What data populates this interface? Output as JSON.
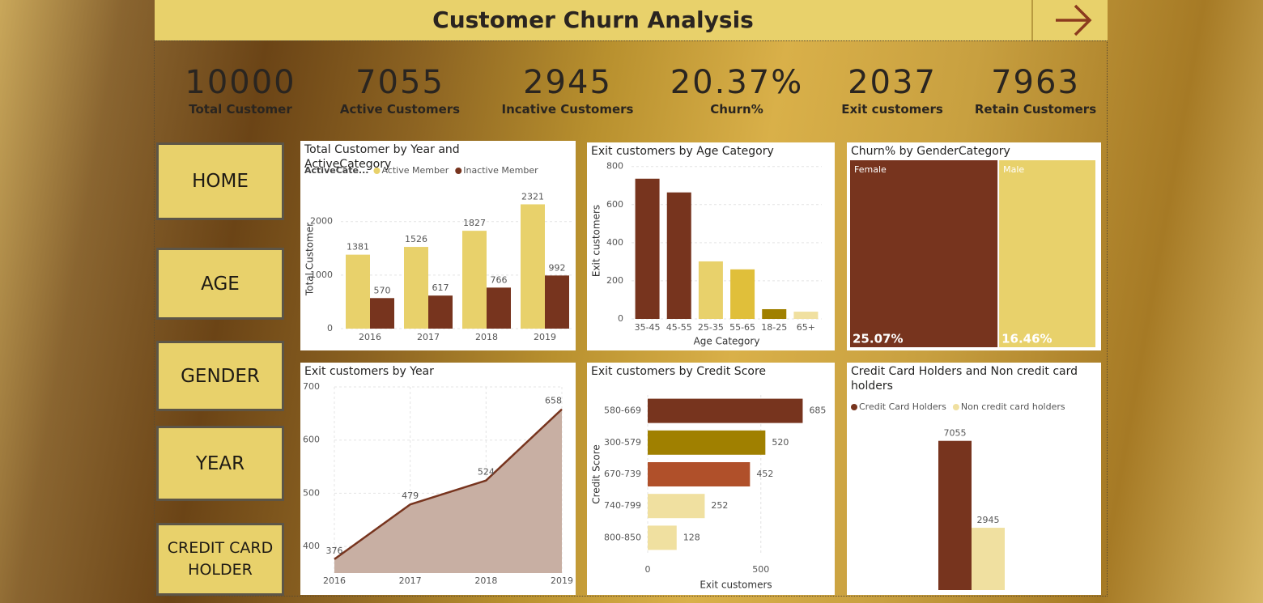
{
  "header": {
    "title": "Customer Churn Analysis"
  },
  "kpis": [
    {
      "value": "10000",
      "label": "Total Customer"
    },
    {
      "value": "7055",
      "label": "Active Customers"
    },
    {
      "value": "2945",
      "label": "Incative Customers"
    },
    {
      "value": "20.37%",
      "label": "Churn%"
    },
    {
      "value": "2037",
      "label": "Exit customers"
    },
    {
      "value": "7963",
      "label": "Retain Customers"
    }
  ],
  "nav": [
    "HOME",
    "AGE",
    "GENDER",
    "YEAR",
    "CREDIT CARD HOLDER"
  ],
  "chart_data": [
    {
      "type": "bar",
      "title": "Total Customer by Year and ActiveCategory",
      "legend_title": "ActiveCate...",
      "categories": [
        "2016",
        "2017",
        "2018",
        "2019"
      ],
      "series": [
        {
          "name": "Active Member",
          "color": "#e8d16b",
          "values": [
            1381,
            1526,
            1827,
            2321
          ]
        },
        {
          "name": "Inactive Member",
          "color": "#77341e",
          "values": [
            570,
            617,
            766,
            992
          ]
        }
      ],
      "y_label": "Total Customer",
      "ylim": [
        0,
        2600
      ],
      "yticks": [
        0,
        1000,
        2000
      ],
      "grid": true,
      "data_labels": true
    },
    {
      "type": "bar",
      "title": "Exit customers by Age Category",
      "categories": [
        "35-45",
        "45-55",
        "25-35",
        "55-65",
        "18-25",
        "65+"
      ],
      "values": [
        736,
        664,
        302,
        260,
        51,
        38
      ],
      "colors": [
        "#77341e",
        "#77341e",
        "#e8d16b",
        "#e0bf3a",
        "#a08000",
        "#f0e0a0"
      ],
      "x_label": "Age Category",
      "y_label": "Exit customers",
      "ylim": [
        0,
        820
      ],
      "yticks": [
        0,
        200,
        400,
        600,
        800
      ],
      "grid": true,
      "data_labels": false
    },
    {
      "type": "treemap",
      "title": "Churn% by GenderCategory",
      "categories": [
        "Female",
        "Male"
      ],
      "values": [
        25.07,
        16.46
      ],
      "value_labels": [
        "25.07%",
        "16.46%"
      ],
      "colors": [
        "#77341e",
        "#e8d16b"
      ]
    },
    {
      "type": "area",
      "title": "Exit customers by Year",
      "categories": [
        "2016",
        "2017",
        "2018",
        "2019"
      ],
      "values": [
        376,
        479,
        524,
        658
      ],
      "color": "#77341e",
      "fill": "#c8afa3",
      "ylim": [
        350,
        700
      ],
      "yticks": [
        400,
        500,
        600,
        700
      ],
      "grid": true,
      "data_labels": true
    },
    {
      "type": "bar",
      "orientation": "horizontal",
      "title": "Exit customers by Credit Score",
      "categories": [
        "580-669",
        "300-579",
        "670-739",
        "740-799",
        "800-850"
      ],
      "values": [
        685,
        520,
        452,
        252,
        128
      ],
      "colors": [
        "#77341e",
        "#a08000",
        "#b0502a",
        "#f0e0a0",
        "#f0e0a0"
      ],
      "x_label": "Exit customers",
      "y_label": "Credit Score",
      "xlim": [
        0,
        780
      ],
      "xticks": [
        0,
        500
      ],
      "grid": true,
      "data_labels": true
    },
    {
      "type": "bar",
      "title": "Credit Card Holders and Non credit card holders",
      "categories": [
        null
      ],
      "series": [
        {
          "name": "Credit Card Holders",
          "color": "#77341e",
          "values": [
            7055
          ]
        },
        {
          "name": "Non credit card holders",
          "color": "#f0e0a0",
          "values": [
            2945
          ]
        }
      ],
      "ylim": [
        0,
        8000
      ],
      "data_labels": true
    }
  ]
}
